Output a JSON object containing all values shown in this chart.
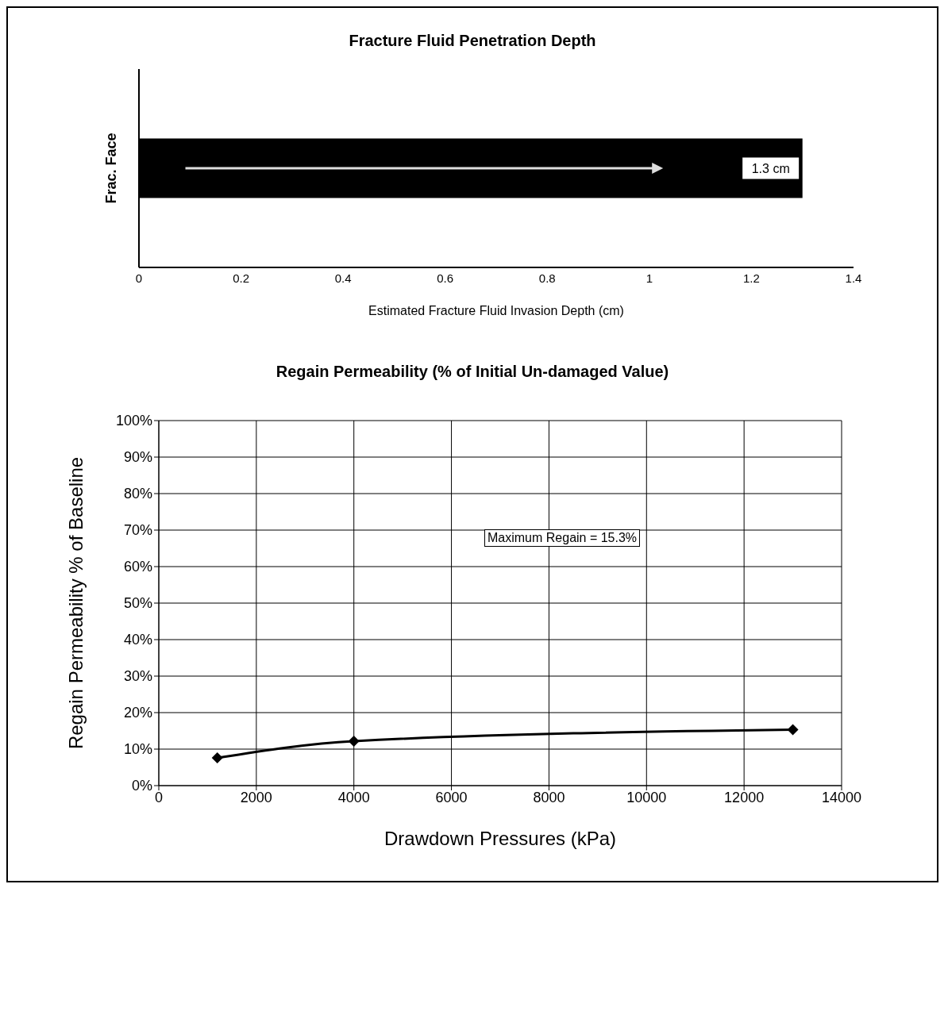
{
  "chart_data": [
    {
      "type": "bar",
      "title": "Fracture Fluid Penetration Depth",
      "xlabel": "Estimated Fracture Fluid Invasion Depth (cm)",
      "ylabel": "Frac. Face",
      "orientation": "horizontal",
      "categories": [
        null
      ],
      "series": [
        {
          "color": "#000000",
          "values": [
            1.3
          ],
          "value_labels": [
            "1.3 cm"
          ]
        }
      ],
      "xlim": [
        0,
        1.4
      ],
      "xticks": [
        0,
        0.2,
        0.4,
        0.6,
        0.8,
        1,
        1.2,
        1.4
      ],
      "tick_labels": "x",
      "grid": false
    },
    {
      "type": "line",
      "title": "Regain Permeability (% of Initial Un-damaged Value)",
      "xlabel": "Drawdown Pressures (kPa)",
      "ylabel": "Regain Permeability % of Baseline",
      "x": [
        1200,
        4000,
        13000
      ],
      "series": [
        {
          "color": "#000000",
          "values": [
            7.6,
            12.2,
            15.3
          ]
        }
      ],
      "xlim": [
        0,
        14000
      ],
      "xticks": [
        0,
        2000,
        4000,
        6000,
        8000,
        10000,
        12000,
        14000
      ],
      "ylim": [
        0,
        100
      ],
      "yticks": [
        {
          "value": 0,
          "label": "0%"
        },
        {
          "value": 10,
          "label": "10%"
        },
        {
          "value": 20,
          "label": "20%"
        },
        {
          "value": 30,
          "label": "30%"
        },
        {
          "value": 40,
          "label": "40%"
        },
        {
          "value": 50,
          "label": "50%"
        },
        {
          "value": 60,
          "label": "60%"
        },
        {
          "value": 70,
          "label": "70%"
        },
        {
          "value": 80,
          "label": "80%"
        },
        {
          "value": 90,
          "label": "90%"
        },
        {
          "value": 100,
          "label": "100%"
        }
      ],
      "grid": true,
      "marker": "diamond",
      "line_style": "solid",
      "annotations": [
        "Maximum Regain = 15.3%"
      ]
    }
  ]
}
